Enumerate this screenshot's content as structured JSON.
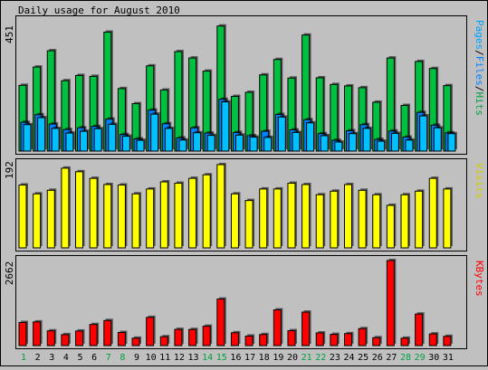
{
  "title": "Daily usage for August 2010",
  "colors": {
    "background": "#c0c0c0",
    "panel": "#c0c0c0",
    "hits": "#00c040",
    "files": "#0080ff",
    "pages": "#00c0ff",
    "visits": "#ffff00",
    "kbytes": "#ff0000",
    "weekend_label": "#00a040",
    "weekday_label": "#000000",
    "legend_hits": "#00a040",
    "legend_files": "#0080ff",
    "legend_pages": "#00a0ff",
    "legend_visits": "#d0d000",
    "legend_kbytes": "#ff0000"
  },
  "panels": {
    "hits": {
      "max_label": "451",
      "legend": [
        "Pages",
        "/",
        "Files",
        "/",
        "Hits"
      ]
    },
    "visits": {
      "max_label": "192",
      "legend": [
        "Visits"
      ]
    },
    "kbytes": {
      "max_label": "2662",
      "legend": [
        "KBytes"
      ]
    }
  },
  "chart_data": [
    {
      "type": "bar",
      "title": "Daily usage for August 2010",
      "categories": [
        "1",
        "2",
        "3",
        "4",
        "5",
        "6",
        "7",
        "8",
        "9",
        "10",
        "11",
        "12",
        "13",
        "14",
        "15",
        "16",
        "17",
        "18",
        "19",
        "20",
        "21",
        "22",
        "23",
        "24",
        "25",
        "26",
        "27",
        "28",
        "29",
        "30",
        "31"
      ],
      "weekend_days": [
        "1",
        "7",
        "8",
        "14",
        "15",
        "21",
        "22",
        "28",
        "29"
      ],
      "ylim": [
        0,
        451
      ],
      "series": [
        {
          "name": "Hits",
          "values": [
            226,
            289,
            345,
            242,
            260,
            257,
            409,
            215,
            163,
            293,
            210,
            342,
            320,
            275,
            430,
            188,
            202,
            262,
            315,
            251,
            399,
            252,
            229,
            224,
            218,
            168,
            320,
            157,
            308,
            284,
            225
          ]
        },
        {
          "name": "Files",
          "values": [
            99,
            125,
            93,
            74,
            80,
            85,
            110,
            57,
            42,
            141,
            94,
            45,
            80,
            62,
            178,
            64,
            53,
            68,
            126,
            73,
            108,
            60,
            37,
            70,
            91,
            40,
            69,
            48,
            133,
            89,
            63
          ]
        },
        {
          "name": "Pages",
          "values": [
            91,
            115,
            78,
            62,
            68,
            77,
            92,
            51,
            37,
            127,
            78,
            38,
            63,
            54,
            169,
            55,
            48,
            47,
            117,
            64,
            97,
            53,
            31,
            60,
            78,
            34,
            61,
            38,
            121,
            80,
            60
          ]
        }
      ]
    },
    {
      "type": "bar",
      "categories": [
        "1",
        "2",
        "3",
        "4",
        "5",
        "6",
        "7",
        "8",
        "9",
        "10",
        "11",
        "12",
        "13",
        "14",
        "15",
        "16",
        "17",
        "18",
        "19",
        "20",
        "21",
        "22",
        "23",
        "24",
        "25",
        "26",
        "27",
        "28",
        "29",
        "30",
        "31"
      ],
      "ylim": [
        0,
        192
      ],
      "series": [
        {
          "name": "Visits",
          "values": [
            142,
            122,
            130,
            180,
            172,
            157,
            143,
            142,
            122,
            133,
            149,
            146,
            157,
            165,
            188,
            122,
            107,
            133,
            133,
            146,
            143,
            120,
            128,
            143,
            130,
            120,
            96,
            120,
            128,
            157,
            133
          ]
        }
      ]
    },
    {
      "type": "bar",
      "categories": [
        "1",
        "2",
        "3",
        "4",
        "5",
        "6",
        "7",
        "8",
        "9",
        "10",
        "11",
        "12",
        "13",
        "14",
        "15",
        "16",
        "17",
        "18",
        "19",
        "20",
        "21",
        "22",
        "23",
        "24",
        "25",
        "26",
        "27",
        "28",
        "29",
        "30",
        "31"
      ],
      "ylim": [
        0,
        2662
      ],
      "series": [
        {
          "name": "KBytes",
          "values": [
            723,
            741,
            461,
            343,
            456,
            660,
            785,
            410,
            232,
            882,
            277,
            507,
            504,
            606,
            1456,
            401,
            298,
            346,
            1118,
            466,
            1047,
            396,
            351,
            374,
            531,
            247,
            2662,
            232,
            987,
            365,
            289
          ]
        }
      ]
    }
  ]
}
